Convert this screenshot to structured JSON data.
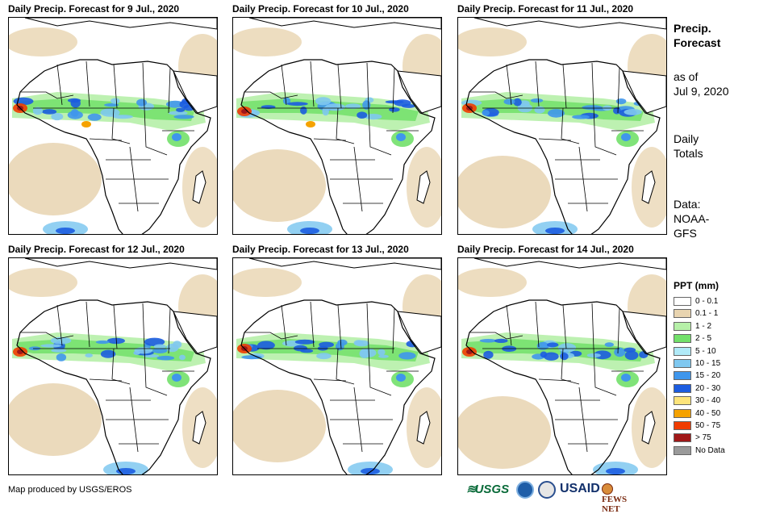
{
  "panels": [
    {
      "title": "Daily Precip. Forecast for 9 Jul., 2020"
    },
    {
      "title": "Daily Precip. Forecast for 10 Jul., 2020"
    },
    {
      "title": "Daily Precip. Forecast for 11 Jul., 2020"
    },
    {
      "title": "Daily Precip. Forecast for 12 Jul., 2020"
    },
    {
      "title": "Daily Precip. Forecast for 13 Jul., 2020"
    },
    {
      "title": "Daily Precip. Forecast for 14 Jul., 2020"
    }
  ],
  "sidebar": {
    "title_line1": "Precip.",
    "title_line2": "Forecast",
    "asof_line1": "as of",
    "asof_line2": "Jul 9, 2020",
    "totals_line1": "Daily",
    "totals_line2": "Totals",
    "data_line1": "Data:",
    "data_line2": "NOAA-",
    "data_line3": "GFS"
  },
  "legend": {
    "title": "PPT (mm)",
    "items": [
      {
        "label": "0 - 0.1",
        "color": "#ffffff"
      },
      {
        "label": "0.1 - 1",
        "color": "#e8d4b0"
      },
      {
        "label": "1 - 2",
        "color": "#b6f0a8"
      },
      {
        "label": "2 - 5",
        "color": "#72e06a"
      },
      {
        "label": "5 - 10",
        "color": "#b0eaf8"
      },
      {
        "label": "10 - 15",
        "color": "#7fc8f0"
      },
      {
        "label": "15 - 20",
        "color": "#3f96ec"
      },
      {
        "label": "20 - 30",
        "color": "#1c5ce0"
      },
      {
        "label": "30 - 40",
        "color": "#fde47a"
      },
      {
        "label": "40 - 50",
        "color": "#f5a200"
      },
      {
        "label": "50 - 75",
        "color": "#f03c00"
      },
      {
        "label": "> 75",
        "color": "#a01818"
      },
      {
        "label": "No Data",
        "color": "#9a9a9a"
      }
    ]
  },
  "credit": "Map produced by USGS/EROS",
  "logos": {
    "usgs": "USGS",
    "usaid": "USAID",
    "fewsnet": "FEWS NET"
  }
}
